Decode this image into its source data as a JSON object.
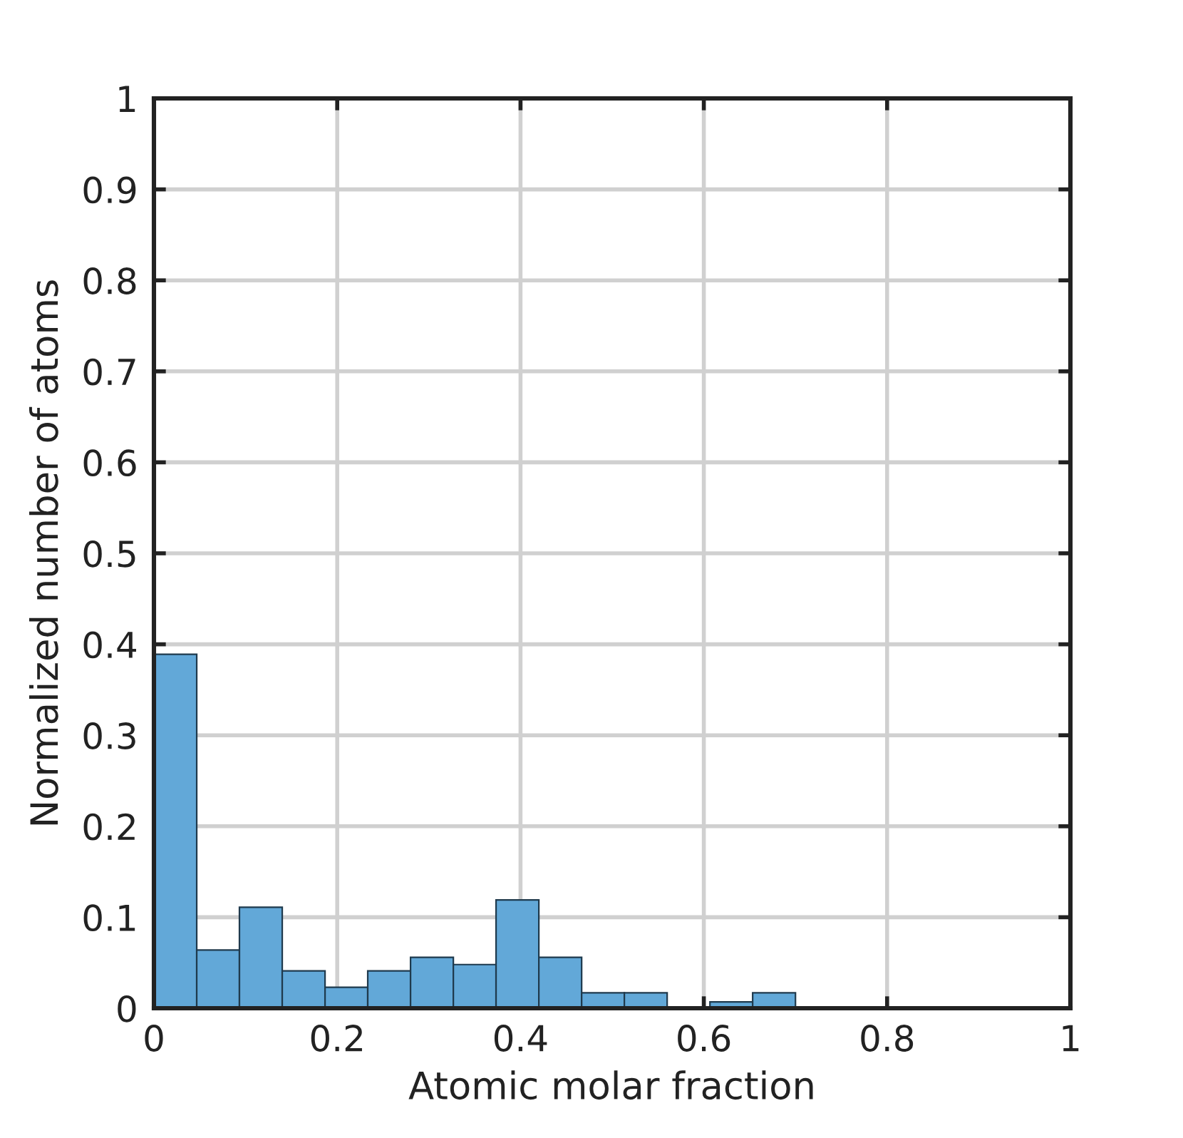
{
  "chart_data": {
    "type": "histogram",
    "xlabel": "Atomic molar fraction",
    "ylabel": "Normalized number of atoms",
    "bins": [
      0,
      0.0467,
      0.0933,
      0.14,
      0.1867,
      0.2333,
      0.28,
      0.3267,
      0.3733,
      0.42,
      0.4667,
      0.5133,
      0.56,
      0.6067,
      0.6533,
      0.7
    ],
    "values": [
      0.389,
      0.064,
      0.111,
      0.041,
      0.023,
      0.041,
      0.056,
      0.048,
      0.119,
      0.056,
      0.017,
      0.017,
      0,
      0.007,
      0.017
    ],
    "color": "#62a8d8",
    "xlim": [
      0,
      1
    ],
    "ylim": [
      0,
      1
    ],
    "xticks": [
      0,
      0.2,
      0.4,
      0.6,
      0.8,
      1
    ],
    "yticks": [
      0,
      0.1,
      0.2,
      0.3,
      0.4,
      0.5,
      0.6,
      0.7,
      0.8,
      0.9,
      1
    ],
    "grid": true
  }
}
